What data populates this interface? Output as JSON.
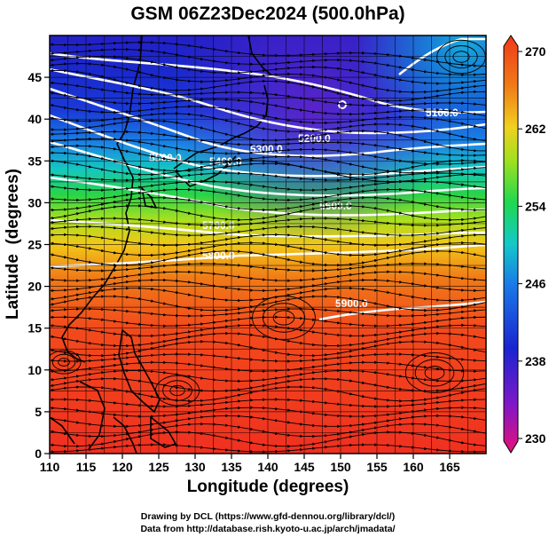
{
  "title": "GSM 06Z23Dec2024 (500.0hPa)",
  "xlabel": "Longitude (degrees)",
  "ylabel": "Latitude  (degrees)",
  "credits": [
    "Drawing by DCL (https://www.gfd-dennou.org/library/dcl/)",
    "Data from http://database.rish.kyoto-u.ac.jp/arch/jmadata/"
  ],
  "map": {
    "lon_range": [
      110,
      170
    ],
    "lat_range": [
      0,
      50
    ],
    "x_ticks": [
      "110",
      "115",
      "120",
      "125",
      "130",
      "135",
      "140",
      "145",
      "150",
      "155",
      "160",
      "165"
    ],
    "y_ticks": [
      "0",
      "5",
      "10",
      "15",
      "20",
      "25",
      "30",
      "35",
      "40",
      "45"
    ],
    "grid": true,
    "overlays": [
      "temperature shading",
      "geopotential height contours",
      "wind streamlines",
      "coastlines"
    ]
  },
  "colorbar": {
    "range": [
      230,
      270
    ],
    "labels": [
      "270",
      "262",
      "254",
      "246",
      "238",
      "230"
    ],
    "colors": [
      "#e8107a",
      "#7c18c8",
      "#1a24d0",
      "#1a78e8",
      "#14c8c8",
      "#20d850",
      "#a0e020",
      "#f0d020",
      "#f07a18",
      "#f03818"
    ]
  },
  "contours": [
    {
      "label": "5100.0"
    },
    {
      "label": "5200.0"
    },
    {
      "label": "5300.0"
    },
    {
      "label": "5400.0"
    },
    {
      "label": "5500.0"
    },
    {
      "label": "5600.0"
    },
    {
      "label": "5700.0"
    },
    {
      "label": "5800.0"
    },
    {
      "label": "5900.0"
    }
  ]
}
